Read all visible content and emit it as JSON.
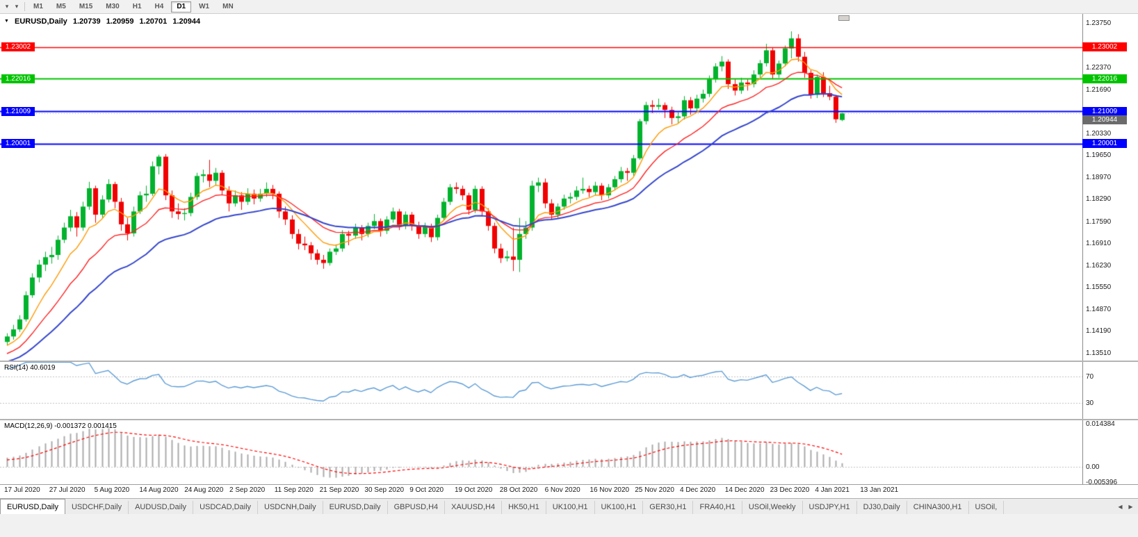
{
  "toolbar": {
    "timeframes": [
      "M1",
      "M5",
      "M15",
      "M30",
      "H1",
      "H4",
      "D1",
      "W1",
      "MN"
    ],
    "active_timeframe": "D1"
  },
  "chart": {
    "title": {
      "symbol": "EURUSD,Daily",
      "open": "1.20739",
      "high": "1.20959",
      "low": "1.20701",
      "close": "1.20944"
    },
    "colors": {
      "bull": "#00b22d",
      "bear": "#f00000",
      "background": "#ffffff",
      "text": "#000000"
    },
    "price_axis": {
      "top_price": 1.2375,
      "bottom_price": 1.1351,
      "ticks": [
        "1.23750",
        "1.23070",
        "1.22370",
        "1.21690",
        "1.21010",
        "1.20330",
        "1.19650",
        "1.18970",
        "1.18290",
        "1.17590",
        "1.16910",
        "1.16230",
        "1.15550",
        "1.14870",
        "1.14190",
        "1.13510"
      ]
    },
    "hlines": [
      {
        "price": 1.23002,
        "label": "1.23002",
        "color": "#ff0000",
        "width": 1.4
      },
      {
        "price": 1.22016,
        "label": "1.22016",
        "color": "#00c300",
        "width": 2
      },
      {
        "price": 1.21009,
        "label": "1.21009",
        "color": "#0000ff",
        "width": 2
      },
      {
        "price": 1.20001,
        "label": "1.20001",
        "color": "#0000ff",
        "width": 2
      }
    ],
    "bid": {
      "price": 1.20944,
      "label": "1.20944",
      "color": "#6b6b6b"
    },
    "date_axis": [
      "17 Jul 2020",
      "27 Jul 2020",
      "5 Aug 2020",
      "14 Aug 2020",
      "24 Aug 2020",
      "2 Sep 2020",
      "11 Sep 2020",
      "21 Sep 2020",
      "30 Sep 2020",
      "9 Oct 2020",
      "19 Oct 2020",
      "28 Oct 2020",
      "6 Nov 2020",
      "16 Nov 2020",
      "25 Nov 2020",
      "4 Dec 2020",
      "14 Dec 2020",
      "23 Dec 2020",
      "4 Jan 2021",
      "13 Jan 2021"
    ]
  },
  "rsi": {
    "label": "RSI(14) 40.6019",
    "period": 14,
    "last_value": 40.6019,
    "color": "#5b9bd5",
    "levels": [
      {
        "value": 70,
        "label": "70"
      },
      {
        "value": 30,
        "label": "30"
      }
    ]
  },
  "macd": {
    "label": "MACD(12,26,9) -0.001372 0.001415",
    "main_last": -0.001372,
    "signal_last": 0.001415,
    "histogram_color": "#ababab",
    "signal_color": "#ff0000",
    "axis_labels": [
      {
        "value": 0.014384,
        "label": "0.014384"
      },
      {
        "value": 0,
        "label": "0.00"
      },
      {
        "value": -0.005396,
        "label": "-0.005396"
      }
    ]
  },
  "tabs": {
    "active_index": 0,
    "items": [
      "EURUSD,Daily",
      "USDCHF,Daily",
      "AUDUSD,Daily",
      "USDCAD,Daily",
      "USDCNH,Daily",
      "EURUSD,Daily",
      "GBPUSD,H4",
      "XAUUSD,H4",
      "HK50,H1",
      "UK100,H1",
      "UK100,H1",
      "GER30,H1",
      "FRA40,H1",
      "USOil,Weekly",
      "USDJPY,H1",
      "DJ30,Daily",
      "CHINA300,H1",
      "USOil,"
    ]
  },
  "chart_data": {
    "type": "candlestick",
    "symbol": "EURUSD",
    "timeframe": "Daily",
    "title": "EURUSD,Daily 1.20739 1.20959 1.20701 1.20944",
    "x_labels": [
      "17 Jul 2020",
      "27 Jul 2020",
      "5 Aug 2020",
      "14 Aug 2020",
      "24 Aug 2020",
      "2 Sep 2020",
      "11 Sep 2020",
      "21 Sep 2020",
      "30 Sep 2020",
      "9 Oct 2020",
      "19 Oct 2020",
      "28 Oct 2020",
      "6 Nov 2020",
      "16 Nov 2020",
      "25 Nov 2020",
      "4 Dec 2020",
      "14 Dec 2020",
      "23 Dec 2020",
      "4 Jan 2021",
      "13 Jan 2021"
    ],
    "ylim": [
      1.1351,
      1.2375
    ],
    "hlines": [
      1.23002,
      1.22016,
      1.21009,
      1.20001
    ],
    "current_bar": {
      "open": 1.20739,
      "high": 1.20959,
      "low": 1.20701,
      "close": 1.20944
    },
    "overlays": [
      {
        "name": "ma-fast",
        "type": "ema",
        "period": 8,
        "color": "#ff9900"
      },
      {
        "name": "ma-medium",
        "type": "ema",
        "period": 16,
        "color": "#ff2020"
      },
      {
        "name": "ma-slow",
        "type": "ema",
        "period": 30,
        "color": "#3344cc"
      }
    ],
    "subcharts": [
      {
        "name": "rsi",
        "type": "line",
        "params": "RSI(14)",
        "last_value": 40.6019,
        "levels": [
          70,
          30
        ]
      },
      {
        "name": "macd",
        "type": "histogram+signal",
        "params": "MACD(12,26,9)",
        "main_last": -0.001372,
        "signal_last": 0.001415,
        "scale_max": 0.014384,
        "scale_min": -0.005396
      }
    ],
    "candles": [
      [
        1.1385,
        1.1412,
        1.1375,
        1.1402
      ],
      [
        1.1402,
        1.1438,
        1.1392,
        1.1424
      ],
      [
        1.1424,
        1.1468,
        1.1416,
        1.1455
      ],
      [
        1.1455,
        1.1542,
        1.1448,
        1.153
      ],
      [
        1.153,
        1.1598,
        1.1522,
        1.1585
      ],
      [
        1.1585,
        1.164,
        1.157,
        1.1625
      ],
      [
        1.1625,
        1.1665,
        1.1605,
        1.1648
      ],
      [
        1.1648,
        1.168,
        1.1628,
        1.1655
      ],
      [
        1.1655,
        1.1715,
        1.164,
        1.1702
      ],
      [
        1.1702,
        1.1755,
        1.1692,
        1.174
      ],
      [
        1.174,
        1.1795,
        1.1728,
        1.1775
      ],
      [
        1.1775,
        1.1788,
        1.1712,
        1.174
      ],
      [
        1.174,
        1.182,
        1.173,
        1.1805
      ],
      [
        1.1805,
        1.1882,
        1.1795,
        1.1862
      ],
      [
        1.1862,
        1.187,
        1.1755,
        1.178
      ],
      [
        1.178,
        1.184,
        1.177,
        1.1827
      ],
      [
        1.1827,
        1.189,
        1.1818,
        1.1875
      ],
      [
        1.1875,
        1.1882,
        1.18,
        1.182
      ],
      [
        1.182,
        1.1832,
        1.173,
        1.175
      ],
      [
        1.175,
        1.177,
        1.17,
        1.1722
      ],
      [
        1.1722,
        1.1805,
        1.1712,
        1.179
      ],
      [
        1.179,
        1.1852,
        1.1782,
        1.184
      ],
      [
        1.184,
        1.187,
        1.182,
        1.1845
      ],
      [
        1.1845,
        1.1945,
        1.1838,
        1.193
      ],
      [
        1.193,
        1.1966,
        1.1905,
        1.196
      ],
      [
        1.196,
        1.1968,
        1.1825,
        1.184
      ],
      [
        1.184,
        1.1855,
        1.177,
        1.179
      ],
      [
        1.179,
        1.1815,
        1.1765,
        1.1782
      ],
      [
        1.1782,
        1.18,
        1.1762,
        1.1785
      ],
      [
        1.1785,
        1.1848,
        1.1775,
        1.1835
      ],
      [
        1.1835,
        1.191,
        1.1826,
        1.19
      ],
      [
        1.19,
        1.192,
        1.188,
        1.1905
      ],
      [
        1.1905,
        1.195,
        1.1865,
        1.1885
      ],
      [
        1.1885,
        1.1925,
        1.187,
        1.191
      ],
      [
        1.191,
        1.1918,
        1.184,
        1.1855
      ],
      [
        1.1855,
        1.1868,
        1.179,
        1.1815
      ],
      [
        1.1815,
        1.1855,
        1.1805,
        1.184
      ],
      [
        1.184,
        1.185,
        1.1795,
        1.182
      ],
      [
        1.182,
        1.1862,
        1.181,
        1.1845
      ],
      [
        1.1845,
        1.1858,
        1.1812,
        1.183
      ],
      [
        1.183,
        1.186,
        1.182,
        1.1845
      ],
      [
        1.1845,
        1.188,
        1.1835,
        1.186
      ],
      [
        1.186,
        1.1872,
        1.1828,
        1.1845
      ],
      [
        1.1845,
        1.1852,
        1.177,
        1.179
      ],
      [
        1.179,
        1.1805,
        1.1748,
        1.1765
      ],
      [
        1.1765,
        1.1778,
        1.1705,
        1.172
      ],
      [
        1.172,
        1.1735,
        1.1672,
        1.169
      ],
      [
        1.169,
        1.1712,
        1.167,
        1.1685
      ],
      [
        1.1685,
        1.1695,
        1.164,
        1.166
      ],
      [
        1.166,
        1.1672,
        1.1625,
        1.164
      ],
      [
        1.164,
        1.1655,
        1.1612,
        1.163
      ],
      [
        1.163,
        1.1675,
        1.1622,
        1.1665
      ],
      [
        1.1665,
        1.1688,
        1.1655,
        1.1675
      ],
      [
        1.1675,
        1.1732,
        1.1665,
        1.172
      ],
      [
        1.172,
        1.173,
        1.1685,
        1.1715
      ],
      [
        1.1715,
        1.1752,
        1.1705,
        1.174
      ],
      [
        1.174,
        1.1748,
        1.17,
        1.172
      ],
      [
        1.172,
        1.1755,
        1.171,
        1.1745
      ],
      [
        1.1745,
        1.1782,
        1.1735,
        1.176
      ],
      [
        1.176,
        1.1768,
        1.1712,
        1.173
      ],
      [
        1.173,
        1.1775,
        1.172,
        1.1765
      ],
      [
        1.1765,
        1.1802,
        1.1755,
        1.179
      ],
      [
        1.179,
        1.1798,
        1.1732,
        1.1745
      ],
      [
        1.1745,
        1.179,
        1.1735,
        1.178
      ],
      [
        1.178,
        1.1788,
        1.173,
        1.1745
      ],
      [
        1.1745,
        1.1758,
        1.1705,
        1.172
      ],
      [
        1.172,
        1.1755,
        1.171,
        1.1745
      ],
      [
        1.1745,
        1.1752,
        1.1695,
        1.171
      ],
      [
        1.171,
        1.178,
        1.17,
        1.177
      ],
      [
        1.177,
        1.1832,
        1.1762,
        1.182
      ],
      [
        1.182,
        1.1875,
        1.181,
        1.1865
      ],
      [
        1.1865,
        1.188,
        1.1845,
        1.186
      ],
      [
        1.186,
        1.187,
        1.1825,
        1.184
      ],
      [
        1.184,
        1.1848,
        1.178,
        1.1795
      ],
      [
        1.1795,
        1.187,
        1.1785,
        1.186
      ],
      [
        1.186,
        1.1868,
        1.1775,
        1.179
      ],
      [
        1.179,
        1.18,
        1.173,
        1.1745
      ],
      [
        1.1745,
        1.1755,
        1.166,
        1.1675
      ],
      [
        1.1675,
        1.169,
        1.163,
        1.1645
      ],
      [
        1.1645,
        1.1668,
        1.1635,
        1.165
      ],
      [
        1.165,
        1.174,
        1.1605,
        1.164
      ],
      [
        1.164,
        1.177,
        1.1602,
        1.172
      ],
      [
        1.172,
        1.176,
        1.1705,
        1.174
      ],
      [
        1.174,
        1.1885,
        1.173,
        1.187
      ],
      [
        1.187,
        1.1895,
        1.185,
        1.188
      ],
      [
        1.188,
        1.1892,
        1.18,
        1.1815
      ],
      [
        1.1815,
        1.1828,
        1.1765,
        1.178
      ],
      [
        1.178,
        1.1815,
        1.177,
        1.1805
      ],
      [
        1.1805,
        1.1842,
        1.1795,
        1.183
      ],
      [
        1.183,
        1.1848,
        1.1815,
        1.1835
      ],
      [
        1.1835,
        1.1868,
        1.1825,
        1.1855
      ],
      [
        1.1855,
        1.1895,
        1.1845,
        1.186
      ],
      [
        1.186,
        1.187,
        1.1835,
        1.185
      ],
      [
        1.185,
        1.1882,
        1.184,
        1.187
      ],
      [
        1.187,
        1.1878,
        1.1825,
        1.184
      ],
      [
        1.184,
        1.1875,
        1.183,
        1.1865
      ],
      [
        1.1865,
        1.19,
        1.1855,
        1.189
      ],
      [
        1.189,
        1.1928,
        1.188,
        1.1915
      ],
      [
        1.1915,
        1.1925,
        1.1885,
        1.191
      ],
      [
        1.191,
        1.1965,
        1.19,
        1.1955
      ],
      [
        1.1955,
        1.2077,
        1.195,
        1.207
      ],
      [
        1.207,
        1.213,
        1.206,
        1.212
      ],
      [
        1.212,
        1.2135,
        1.2095,
        1.2115
      ],
      [
        1.2115,
        1.214,
        1.2105,
        1.212
      ],
      [
        1.212,
        1.2128,
        1.208,
        1.2105
      ],
      [
        1.2105,
        1.2115,
        1.206,
        1.208
      ],
      [
        1.208,
        1.2098,
        1.2065,
        1.2085
      ],
      [
        1.2085,
        1.2148,
        1.2075,
        1.2135
      ],
      [
        1.2135,
        1.2145,
        1.209,
        1.211
      ],
      [
        1.211,
        1.2152,
        1.21,
        1.214
      ],
      [
        1.214,
        1.2168,
        1.2128,
        1.2155
      ],
      [
        1.2155,
        1.2212,
        1.2145,
        1.22
      ],
      [
        1.22,
        1.225,
        1.219,
        1.224
      ],
      [
        1.224,
        1.2272,
        1.2225,
        1.2255
      ],
      [
        1.2255,
        1.2262,
        1.217,
        1.2185
      ],
      [
        1.2185,
        1.22,
        1.215,
        1.2165
      ],
      [
        1.2165,
        1.2205,
        1.2155,
        1.219
      ],
      [
        1.219,
        1.22,
        1.2165,
        1.2185
      ],
      [
        1.2185,
        1.2228,
        1.2175,
        1.2215
      ],
      [
        1.2215,
        1.226,
        1.2205,
        1.225
      ],
      [
        1.225,
        1.231,
        1.224,
        1.229
      ],
      [
        1.229,
        1.2298,
        1.22,
        1.2215
      ],
      [
        1.2215,
        1.2258,
        1.2205,
        1.2249
      ],
      [
        1.2249,
        1.2305,
        1.224,
        1.2296
      ],
      [
        1.2296,
        1.2349,
        1.2265,
        1.2327
      ],
      [
        1.2327,
        1.234,
        1.2255,
        1.227
      ],
      [
        1.227,
        1.2285,
        1.2205,
        1.222
      ],
      [
        1.222,
        1.2228,
        1.214,
        1.2152
      ],
      [
        1.2152,
        1.2215,
        1.2142,
        1.2207
      ],
      [
        1.2207,
        1.2222,
        1.2145,
        1.2157
      ],
      [
        1.2157,
        1.218,
        1.2135,
        1.2146
      ],
      [
        1.2146,
        1.2152,
        1.2065,
        1.2076
      ],
      [
        1.20739,
        1.20959,
        1.20701,
        1.20944
      ]
    ]
  }
}
